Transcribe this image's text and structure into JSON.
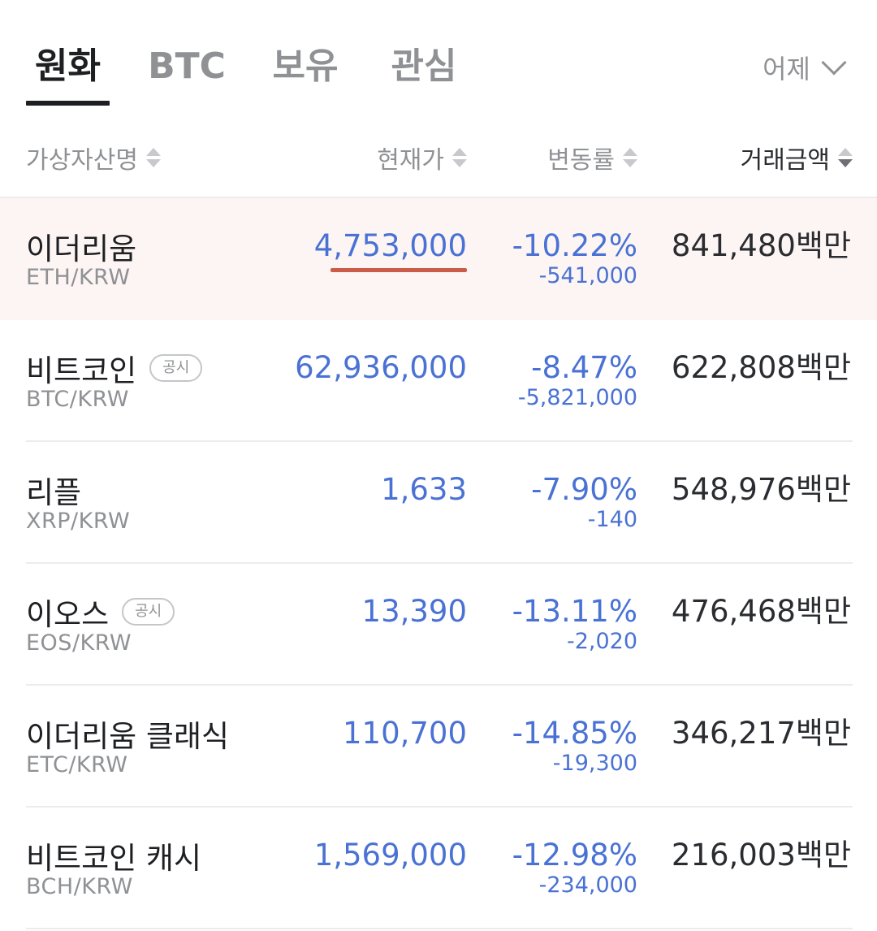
{
  "tabs": [
    {
      "label": "원화",
      "active": true
    },
    {
      "label": "BTC",
      "active": false
    },
    {
      "label": "보유",
      "active": false
    },
    {
      "label": "관심",
      "active": false
    }
  ],
  "period": {
    "label": "어제"
  },
  "header": {
    "name": "가상자산명",
    "price": "현재가",
    "rate": "변동률",
    "volume": "거래금액"
  },
  "sort": {
    "column": "volume",
    "direction": "desc"
  },
  "colors": {
    "down": "#4a72d4",
    "highlight_bg": "#fdf5f3",
    "tick_underline": "#cc5c4a",
    "text_dark": "#1d1f22",
    "text_muted": "#8f9194"
  },
  "rows": [
    {
      "name": "이더리움",
      "badge": "",
      "pair": "ETH/KRW",
      "price": "4,753,000",
      "rate": "-10.22%",
      "change": "-541,000",
      "volume": "841,480백만",
      "highlighted": true
    },
    {
      "name": "비트코인",
      "badge": "공시",
      "pair": "BTC/KRW",
      "price": "62,936,000",
      "rate": "-8.47%",
      "change": "-5,821,000",
      "volume": "622,808백만",
      "highlighted": false
    },
    {
      "name": "리플",
      "badge": "",
      "pair": "XRP/KRW",
      "price": "1,633",
      "rate": "-7.90%",
      "change": "-140",
      "volume": "548,976백만",
      "highlighted": false
    },
    {
      "name": "이오스",
      "badge": "공시",
      "pair": "EOS/KRW",
      "price": "13,390",
      "rate": "-13.11%",
      "change": "-2,020",
      "volume": "476,468백만",
      "highlighted": false
    },
    {
      "name": "이더리움 클래식",
      "badge": "",
      "pair": "ETC/KRW",
      "price": "110,700",
      "rate": "-14.85%",
      "change": "-19,300",
      "volume": "346,217백만",
      "highlighted": false
    },
    {
      "name": "비트코인 캐시",
      "badge": "",
      "pair": "BCH/KRW",
      "price": "1,569,000",
      "rate": "-12.98%",
      "change": "-234,000",
      "volume": "216,003백만",
      "highlighted": false
    }
  ]
}
